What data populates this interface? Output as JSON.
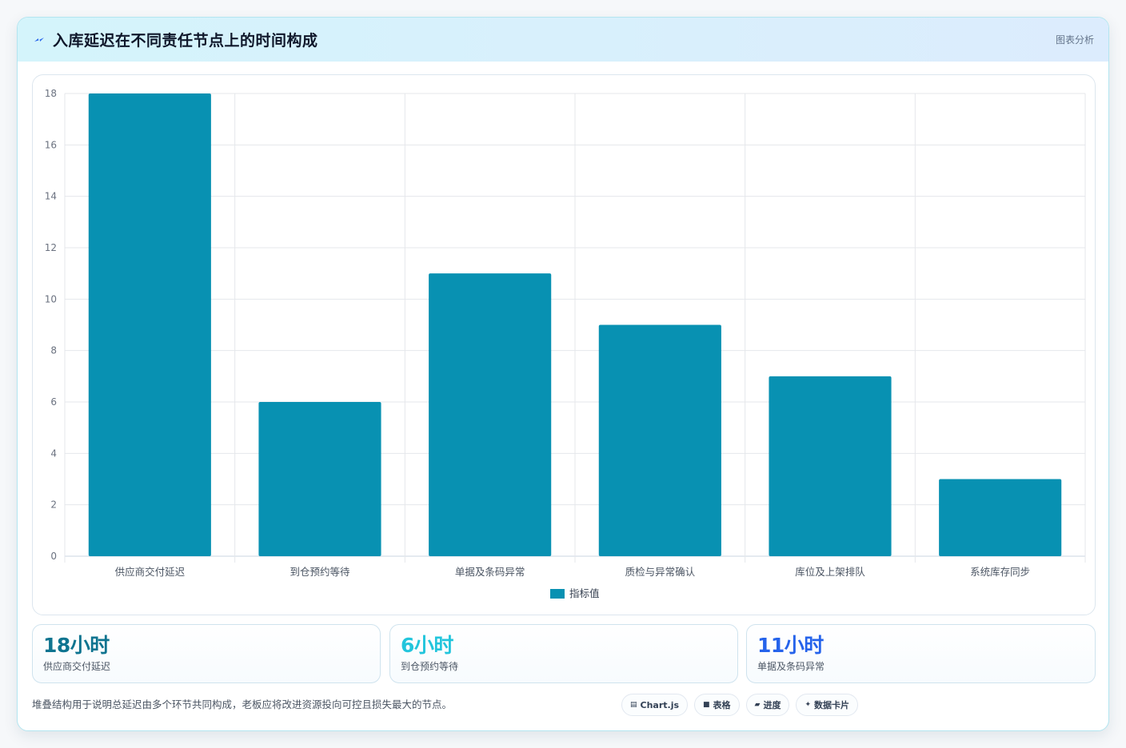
{
  "header": {
    "title": "入库延迟在不同责任节点上的时间构成",
    "link": "图表分析",
    "icon": "lightning-icon"
  },
  "chart_data": {
    "type": "bar",
    "categories": [
      "供应商交付延迟",
      "到仓预约等待",
      "单据及条码异常",
      "质检与异常确认",
      "库位及上架排队",
      "系统库存同步"
    ],
    "series": [
      {
        "name": "指标值",
        "values": [
          18,
          6,
          11,
          9,
          7,
          3
        ],
        "color": "#0891b2"
      }
    ],
    "ylim": [
      0,
      18
    ],
    "yticks": [
      0,
      2,
      4,
      6,
      8,
      10,
      12,
      14,
      16,
      18
    ],
    "grid": true,
    "legend": "bottom"
  },
  "stats": [
    {
      "value": "18小时",
      "label": "供应商交付延迟",
      "color": "#0e7490"
    },
    {
      "value": "6小时",
      "label": "到仓预约等待",
      "color": "#22c5dc"
    },
    {
      "value": "11小时",
      "label": "单据及条码异常",
      "color": "#2563eb"
    }
  ],
  "footnote": "堆叠结构用于说明总延迟由多个环节共同构成，老板应将改进资源投向可控且损失最大的节点。",
  "chips": [
    {
      "icon": "▤",
      "label": "Chart.js",
      "icon_name": "chart-icon"
    },
    {
      "icon": "■",
      "label": "表格",
      "icon_name": "table-icon"
    },
    {
      "icon": "▰",
      "label": "进度",
      "icon_name": "progress-icon"
    },
    {
      "icon": "✦",
      "label": "数据卡片",
      "icon_name": "sparkle-icon"
    }
  ]
}
